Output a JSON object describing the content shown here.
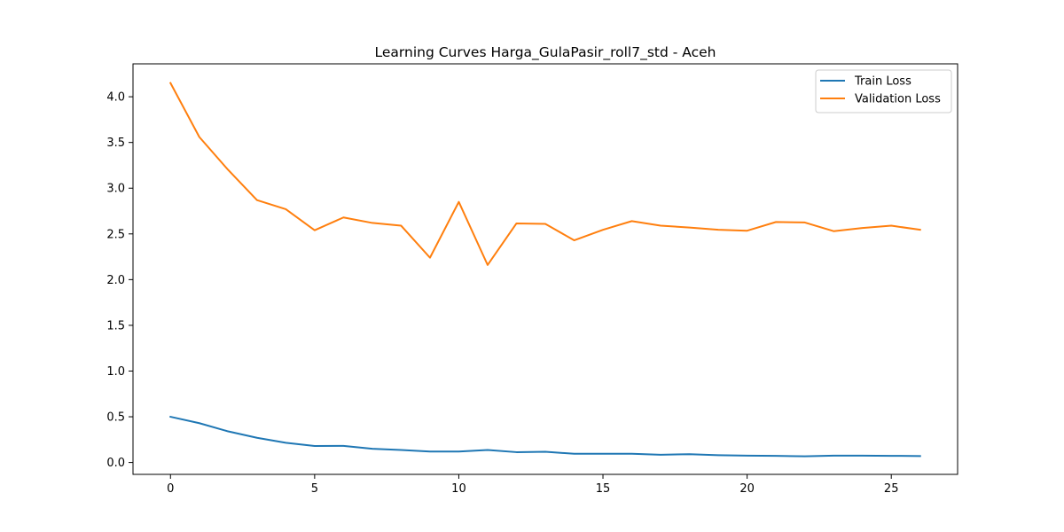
{
  "chart_data": {
    "type": "line",
    "title": "Learning Curves Harga_GulaPasir_roll7_std - Aceh",
    "xlabel": "",
    "ylabel": "",
    "xlim": [
      -1.3,
      27.3
    ],
    "ylim": [
      -0.13,
      4.36
    ],
    "xticks": [
      0,
      5,
      10,
      15,
      20,
      25
    ],
    "yticks": [
      0.0,
      0.5,
      1.0,
      1.5,
      2.0,
      2.5,
      3.0,
      3.5,
      4.0
    ],
    "xtick_labels": [
      "0",
      "5",
      "10",
      "15",
      "20",
      "25"
    ],
    "ytick_labels": [
      "0.0",
      "0.5",
      "1.0",
      "1.5",
      "2.0",
      "2.5",
      "3.0",
      "3.5",
      "4.0"
    ],
    "grid": false,
    "legend_position": "upper-right",
    "x": [
      0,
      1,
      2,
      3,
      4,
      5,
      6,
      7,
      8,
      9,
      10,
      11,
      12,
      13,
      14,
      15,
      16,
      17,
      18,
      19,
      20,
      21,
      22,
      23,
      24,
      25,
      26
    ],
    "series": [
      {
        "name": "Train Loss",
        "color": "#1f77b4",
        "values": [
          0.5,
          0.43,
          0.34,
          0.27,
          0.215,
          0.18,
          0.182,
          0.15,
          0.137,
          0.12,
          0.12,
          0.137,
          0.113,
          0.117,
          0.095,
          0.095,
          0.095,
          0.085,
          0.09,
          0.08,
          0.075,
          0.072,
          0.068,
          0.075,
          0.075,
          0.073,
          0.07
        ]
      },
      {
        "name": "Validation Loss",
        "color": "#ff7f0e",
        "values": [
          4.15,
          3.56,
          3.2,
          2.87,
          2.77,
          2.54,
          2.68,
          2.62,
          2.59,
          2.24,
          2.85,
          2.16,
          2.615,
          2.61,
          2.43,
          2.545,
          2.64,
          2.59,
          2.57,
          2.545,
          2.535,
          2.63,
          2.625,
          2.53,
          2.565,
          2.59,
          2.545
        ]
      }
    ]
  }
}
